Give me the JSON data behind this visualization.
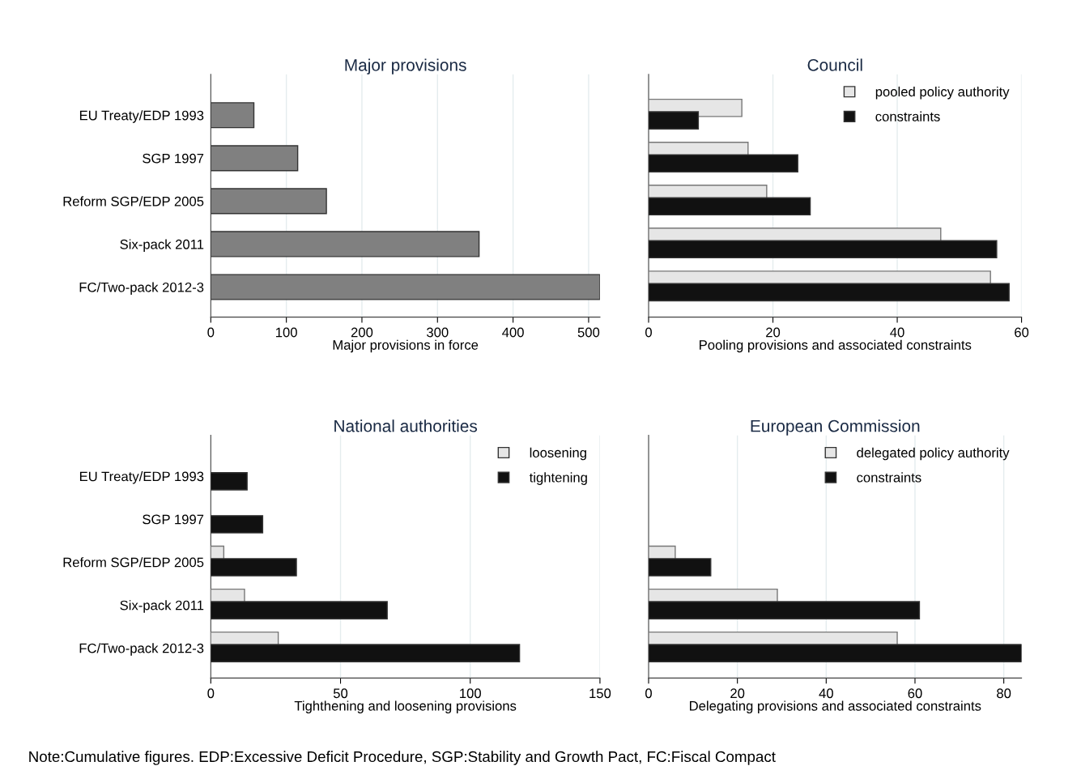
{
  "chart_data": [
    {
      "type": "bar",
      "orientation": "horizontal",
      "title": "Major provisions",
      "xlabel": "Major provisions in force",
      "categories": [
        "EU Treaty/EDP 1993",
        "SGP 1997",
        "Reform SGP/EDP 2005",
        "Six-pack 2011",
        "FC/Two-pack 2012-3"
      ],
      "series": [
        {
          "color": "#808080",
          "values": [
            57,
            115,
            153,
            355,
            515
          ]
        }
      ],
      "xlim": [
        0,
        515
      ],
      "xticks": [
        0,
        100,
        200,
        300,
        400,
        500
      ],
      "grid": "x",
      "legend": false,
      "annotations": [
        "Note:Cumulative figures. EDP:Excessive Deficit Procedure, SGP:Stability and Growth Pact, FC:Fiscal Compact"
      ]
    },
    {
      "type": "bar",
      "orientation": "horizontal",
      "title": "Council",
      "xlabel": "Pooling provisions and associated constraints",
      "categories": [
        null,
        null,
        null,
        null,
        null
      ],
      "series": [
        {
          "name": "pooled policy authority",
          "color": "#e6e6e6",
          "values": [
            15,
            16,
            19,
            47,
            55
          ]
        },
        {
          "name": "constraints",
          "color": "#111111",
          "values": [
            8,
            24,
            26,
            56,
            58
          ]
        }
      ],
      "xlim": [
        0,
        60
      ],
      "xticks": [
        0,
        20,
        40,
        60
      ],
      "grid": "x",
      "legend": "top right"
    },
    {
      "type": "bar",
      "orientation": "horizontal",
      "title": "National authorities",
      "xlabel": "Tighthening and loosening provisions",
      "categories": [
        "EU Treaty/EDP 1993",
        "SGP 1997",
        "Reform SGP/EDP 2005",
        "Six-pack 2011",
        "FC/Two-pack 2012-3"
      ],
      "series": [
        {
          "name": "loosening",
          "color": "#e6e6e6",
          "values": [
            null,
            null,
            5,
            13,
            26
          ]
        },
        {
          "name": "tightening",
          "color": "#111111",
          "values": [
            14,
            20,
            33,
            68,
            119
          ]
        }
      ],
      "xlim": [
        0,
        150
      ],
      "xticks": [
        0,
        50,
        100,
        150
      ],
      "grid": "x",
      "legend": "top right"
    },
    {
      "type": "bar",
      "orientation": "horizontal",
      "title": "European Commission",
      "xlabel": "Delegating provisions and associated constraints",
      "categories": [
        null,
        null,
        null,
        null,
        null
      ],
      "series": [
        {
          "name": "delegated policy authority",
          "color": "#e6e6e6",
          "values": [
            null,
            null,
            6,
            29,
            56
          ]
        },
        {
          "name": "constraints",
          "color": "#111111",
          "values": [
            null,
            null,
            14,
            61,
            84
          ]
        }
      ],
      "xlim": [
        0,
        84
      ],
      "xticks": [
        0,
        20,
        40,
        60,
        80
      ],
      "grid": "x",
      "legend": "top right"
    }
  ]
}
